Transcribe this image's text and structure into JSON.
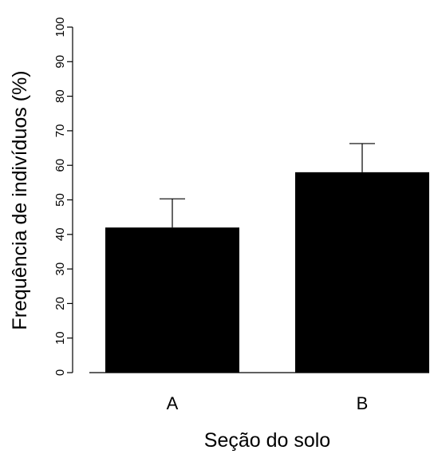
{
  "chart_data": {
    "type": "bar",
    "title": "",
    "xlabel": "Seção do solo",
    "ylabel": "Frequência de indivíduos (%)",
    "categories": [
      "A",
      "B"
    ],
    "values": [
      42,
      58
    ],
    "error_upper": [
      50.3,
      66.3
    ],
    "ylim": [
      0,
      100
    ],
    "yticks": [
      0,
      10,
      20,
      30,
      40,
      50,
      60,
      70,
      80,
      90,
      100
    ],
    "grid": false,
    "legend": "none",
    "bar_color": "#000000",
    "axis_color": "#000000"
  }
}
